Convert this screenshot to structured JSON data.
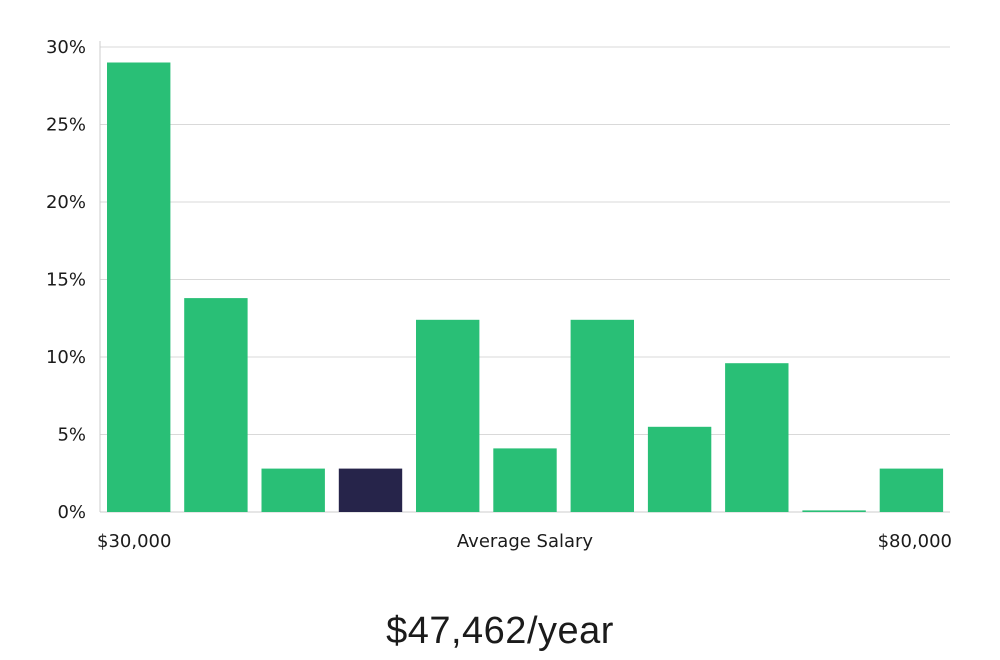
{
  "chart_data": {
    "type": "bar",
    "xlabel": "Average Salary",
    "x_range_labels": {
      "min": "$30,000",
      "max": "$80,000"
    },
    "ylim": [
      0,
      30
    ],
    "y_ticks": [
      0,
      5,
      10,
      15,
      20,
      25,
      30
    ],
    "y_tick_labels": [
      "0%",
      "5%",
      "10%",
      "15%",
      "20%",
      "25%",
      "30%"
    ],
    "grid": true,
    "values": [
      29.0,
      13.8,
      2.8,
      2.8,
      12.4,
      4.1,
      12.4,
      5.5,
      9.6,
      0.1,
      2.8
    ],
    "highlight_index": 3,
    "colors": {
      "bar": "#29bf76",
      "bar_highlight": "#26244a",
      "grid": "#d9d9d9",
      "axis": "#cccccc",
      "text": "#1b1b1b"
    }
  },
  "summary": {
    "salary": "$47,462/year"
  }
}
